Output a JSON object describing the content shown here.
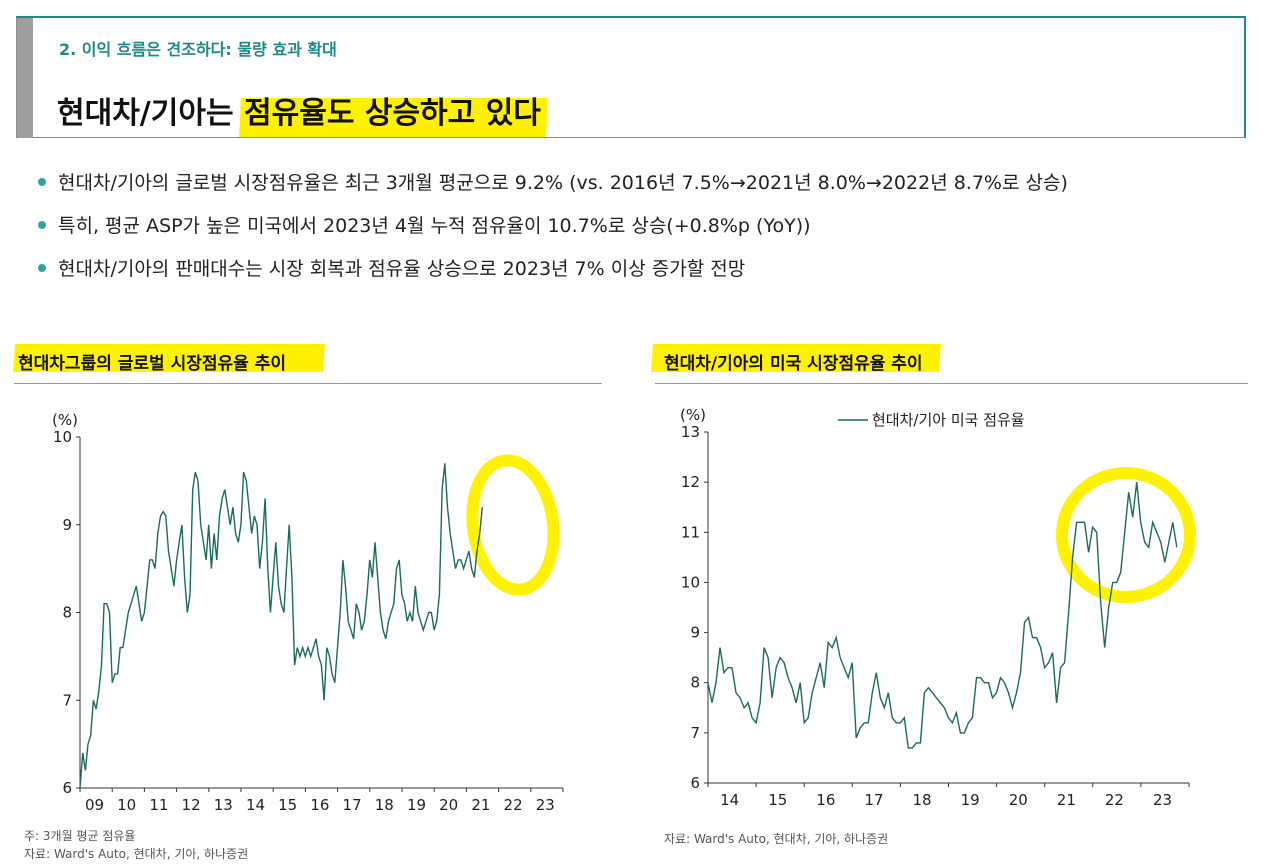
{
  "header": {
    "subtitle": "2. 이익 흐름은 견조하다: 물량 효과 확대",
    "title_plain": "현대차/기아는 ",
    "title_highlight": "점유율도 상승하고 있다"
  },
  "bullets": [
    "현대차/기아의 글로벌 시장점유율은 최근 3개월 평균으로 9.2% (vs. 2016년 7.5%→2021년 8.0%→2022년 8.7%로 상승)",
    "특히, 평균 ASP가 높은 미국에서 2023년 4월 누적 점유율이 10.7%로 상승(+0.8%p (YoY))",
    "현대차/기아의 판매대수는 시장 회복과 점유율 상승으로 2023년 7% 이상 증가할 전망"
  ],
  "colors": {
    "line": "#1a6b5c",
    "highlight": "#fff200",
    "accent": "#1a8a86"
  },
  "chart_data": [
    {
      "type": "line",
      "title": "현대차그룹의 글로벌 시장점유율 추이",
      "ylabel": "(%)",
      "ylim": [
        6,
        10
      ],
      "yticks": [
        "6",
        "7",
        "8",
        "9",
        "10"
      ],
      "xticks": [
        "09",
        "10",
        "11",
        "12",
        "13",
        "14",
        "15",
        "16",
        "17",
        "18",
        "19",
        "20",
        "21",
        "22",
        "23"
      ],
      "xrange": [
        2009,
        2024
      ],
      "x_start": 2009.0,
      "x_step": 0.0833,
      "series": [
        {
          "values": [
            6.0,
            6.4,
            6.2,
            6.5,
            6.6,
            7.0,
            6.9,
            7.1,
            7.4,
            8.1,
            8.1,
            8.0,
            7.2,
            7.3,
            7.3,
            7.6,
            7.6,
            7.8,
            8.0,
            8.1,
            8.2,
            8.3,
            8.1,
            7.9,
            8.0,
            8.3,
            8.6,
            8.6,
            8.5,
            8.9,
            9.1,
            9.15,
            9.1,
            8.7,
            8.5,
            8.3,
            8.6,
            8.8,
            9.0,
            8.4,
            8.0,
            8.2,
            9.4,
            9.6,
            9.5,
            9.0,
            8.8,
            8.6,
            9.0,
            8.5,
            8.9,
            8.6,
            9.1,
            9.3,
            9.4,
            9.2,
            9.0,
            9.2,
            8.9,
            8.8,
            9.0,
            9.6,
            9.5,
            9.2,
            8.9,
            9.1,
            9.0,
            8.5,
            8.8,
            9.3,
            8.5,
            8.0,
            8.4,
            8.8,
            8.3,
            8.1,
            8.0,
            8.5,
            9.0,
            8.4,
            7.4,
            7.6,
            7.5,
            7.6,
            7.5,
            7.6,
            7.5,
            7.6,
            7.7,
            7.5,
            7.4,
            7.0,
            7.6,
            7.5,
            7.3,
            7.2,
            7.6,
            8.0,
            8.6,
            8.3,
            7.9,
            7.8,
            7.7,
            8.1,
            8.0,
            7.8,
            7.9,
            8.2,
            8.6,
            8.4,
            8.8,
            8.4,
            8.0,
            7.8,
            7.7,
            7.9,
            8.0,
            8.1,
            8.5,
            8.6,
            8.2,
            8.1,
            7.9,
            8.0,
            7.9,
            8.3,
            8.0,
            7.9,
            7.8,
            7.9,
            8.0,
            8.0,
            7.8,
            7.9,
            8.2,
            9.4,
            9.7,
            9.2,
            8.9,
            8.7,
            8.5,
            8.6,
            8.6,
            8.5,
            8.6,
            8.7,
            8.5,
            8.4,
            8.7,
            8.9,
            9.2
          ]
        }
      ],
      "notes": [
        "주: 3개월 평균 점유율",
        "자료: Ward's Auto, 현대차, 기아, 하나증권"
      ]
    },
    {
      "type": "line",
      "title": "현대차/기아의 미국 시장점유율 추이",
      "ylabel": "(%)",
      "ylim": [
        6,
        13
      ],
      "yticks": [
        "6",
        "7",
        "8",
        "9",
        "10",
        "11",
        "12",
        "13"
      ],
      "xticks": [
        "14",
        "15",
        "16",
        "17",
        "18",
        "19",
        "20",
        "21",
        "22",
        "23"
      ],
      "xrange": [
        2014,
        2024
      ],
      "x_start": 2014.0,
      "x_step": 0.0833,
      "legend": "현대차/기아 미국 점유율",
      "series": [
        {
          "name": "현대차/기아 미국 점유율",
          "values": [
            8.0,
            7.6,
            8.0,
            8.7,
            8.2,
            8.3,
            8.3,
            7.8,
            7.7,
            7.5,
            7.6,
            7.3,
            7.2,
            7.6,
            8.7,
            8.5,
            7.7,
            8.3,
            8.5,
            8.4,
            8.1,
            7.9,
            7.6,
            8.0,
            7.2,
            7.3,
            7.8,
            8.1,
            8.4,
            7.9,
            8.8,
            8.7,
            8.9,
            8.5,
            8.3,
            8.1,
            8.4,
            6.9,
            7.1,
            7.2,
            7.2,
            7.8,
            8.2,
            7.7,
            7.5,
            7.8,
            7.3,
            7.2,
            7.2,
            7.3,
            6.7,
            6.7,
            6.8,
            6.8,
            7.8,
            7.9,
            7.8,
            7.7,
            7.6,
            7.5,
            7.3,
            7.2,
            7.4,
            7.0,
            7.0,
            7.2,
            7.3,
            8.1,
            8.1,
            8.0,
            8.0,
            7.7,
            7.8,
            8.1,
            8.0,
            7.8,
            7.5,
            7.8,
            8.2,
            9.2,
            9.3,
            8.9,
            8.9,
            8.7,
            8.3,
            8.4,
            8.6,
            7.6,
            8.3,
            8.4,
            9.4,
            10.5,
            11.2,
            11.2,
            11.2,
            10.6,
            11.1,
            11.0,
            9.6,
            8.7,
            9.5,
            10.0,
            10.0,
            10.2,
            11.0,
            11.8,
            11.3,
            12.0,
            11.2,
            10.8,
            10.7,
            11.2,
            11.0,
            10.8,
            10.4,
            10.8,
            11.2,
            10.7
          ]
        }
      ],
      "notes": [
        "자료: Ward's Auto, 현대차, 기아, 하나증권"
      ]
    }
  ]
}
